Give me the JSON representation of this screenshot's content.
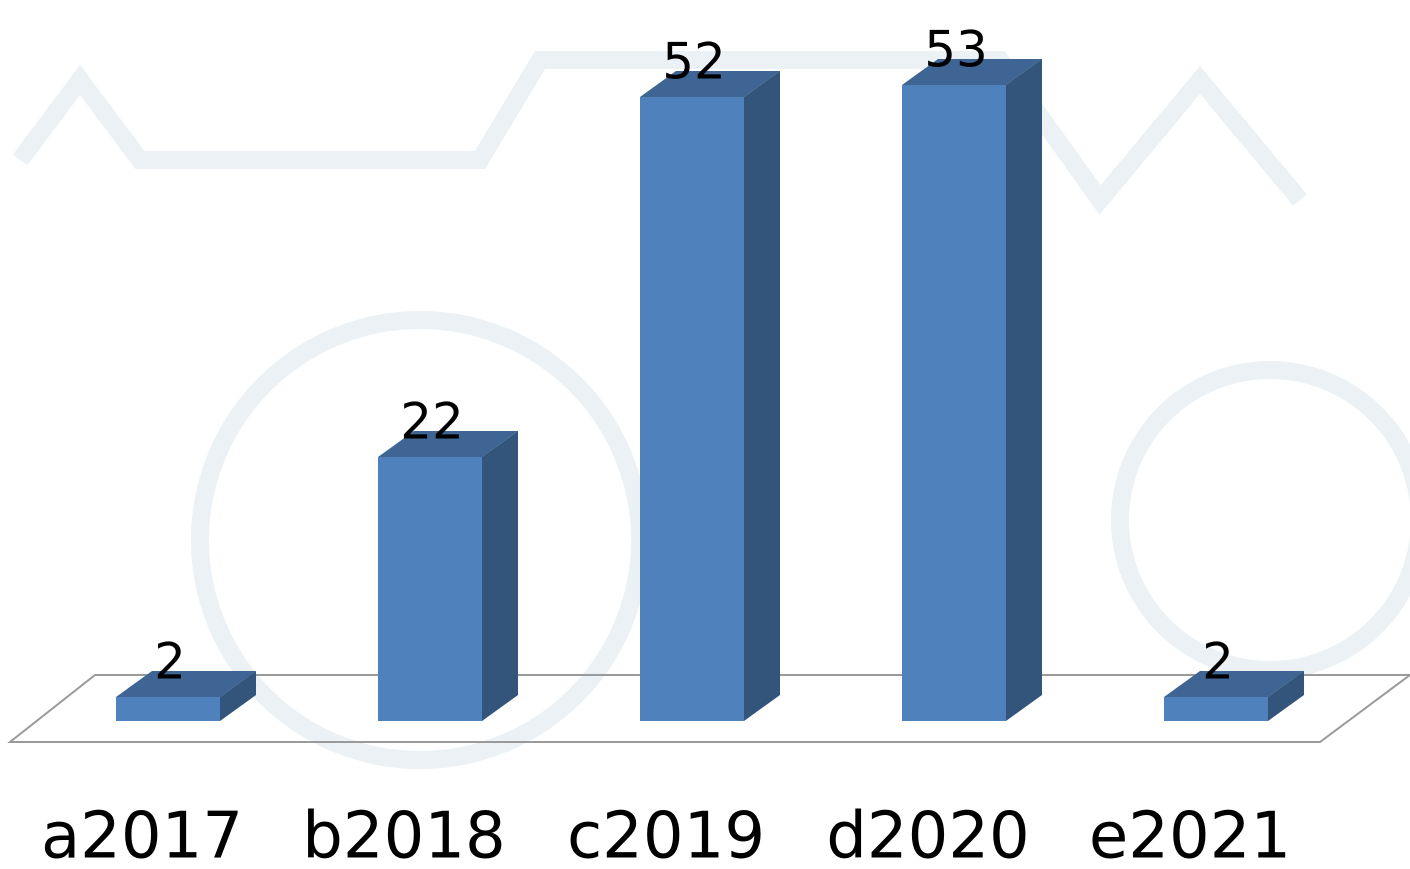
{
  "chart_data": {
    "type": "bar3d",
    "categories": [
      "a2017",
      "b2018",
      "c2019",
      "d2020",
      "e2021"
    ],
    "values": [
      2,
      22,
      52,
      53,
      2
    ],
    "color": "#4f81bd"
  }
}
